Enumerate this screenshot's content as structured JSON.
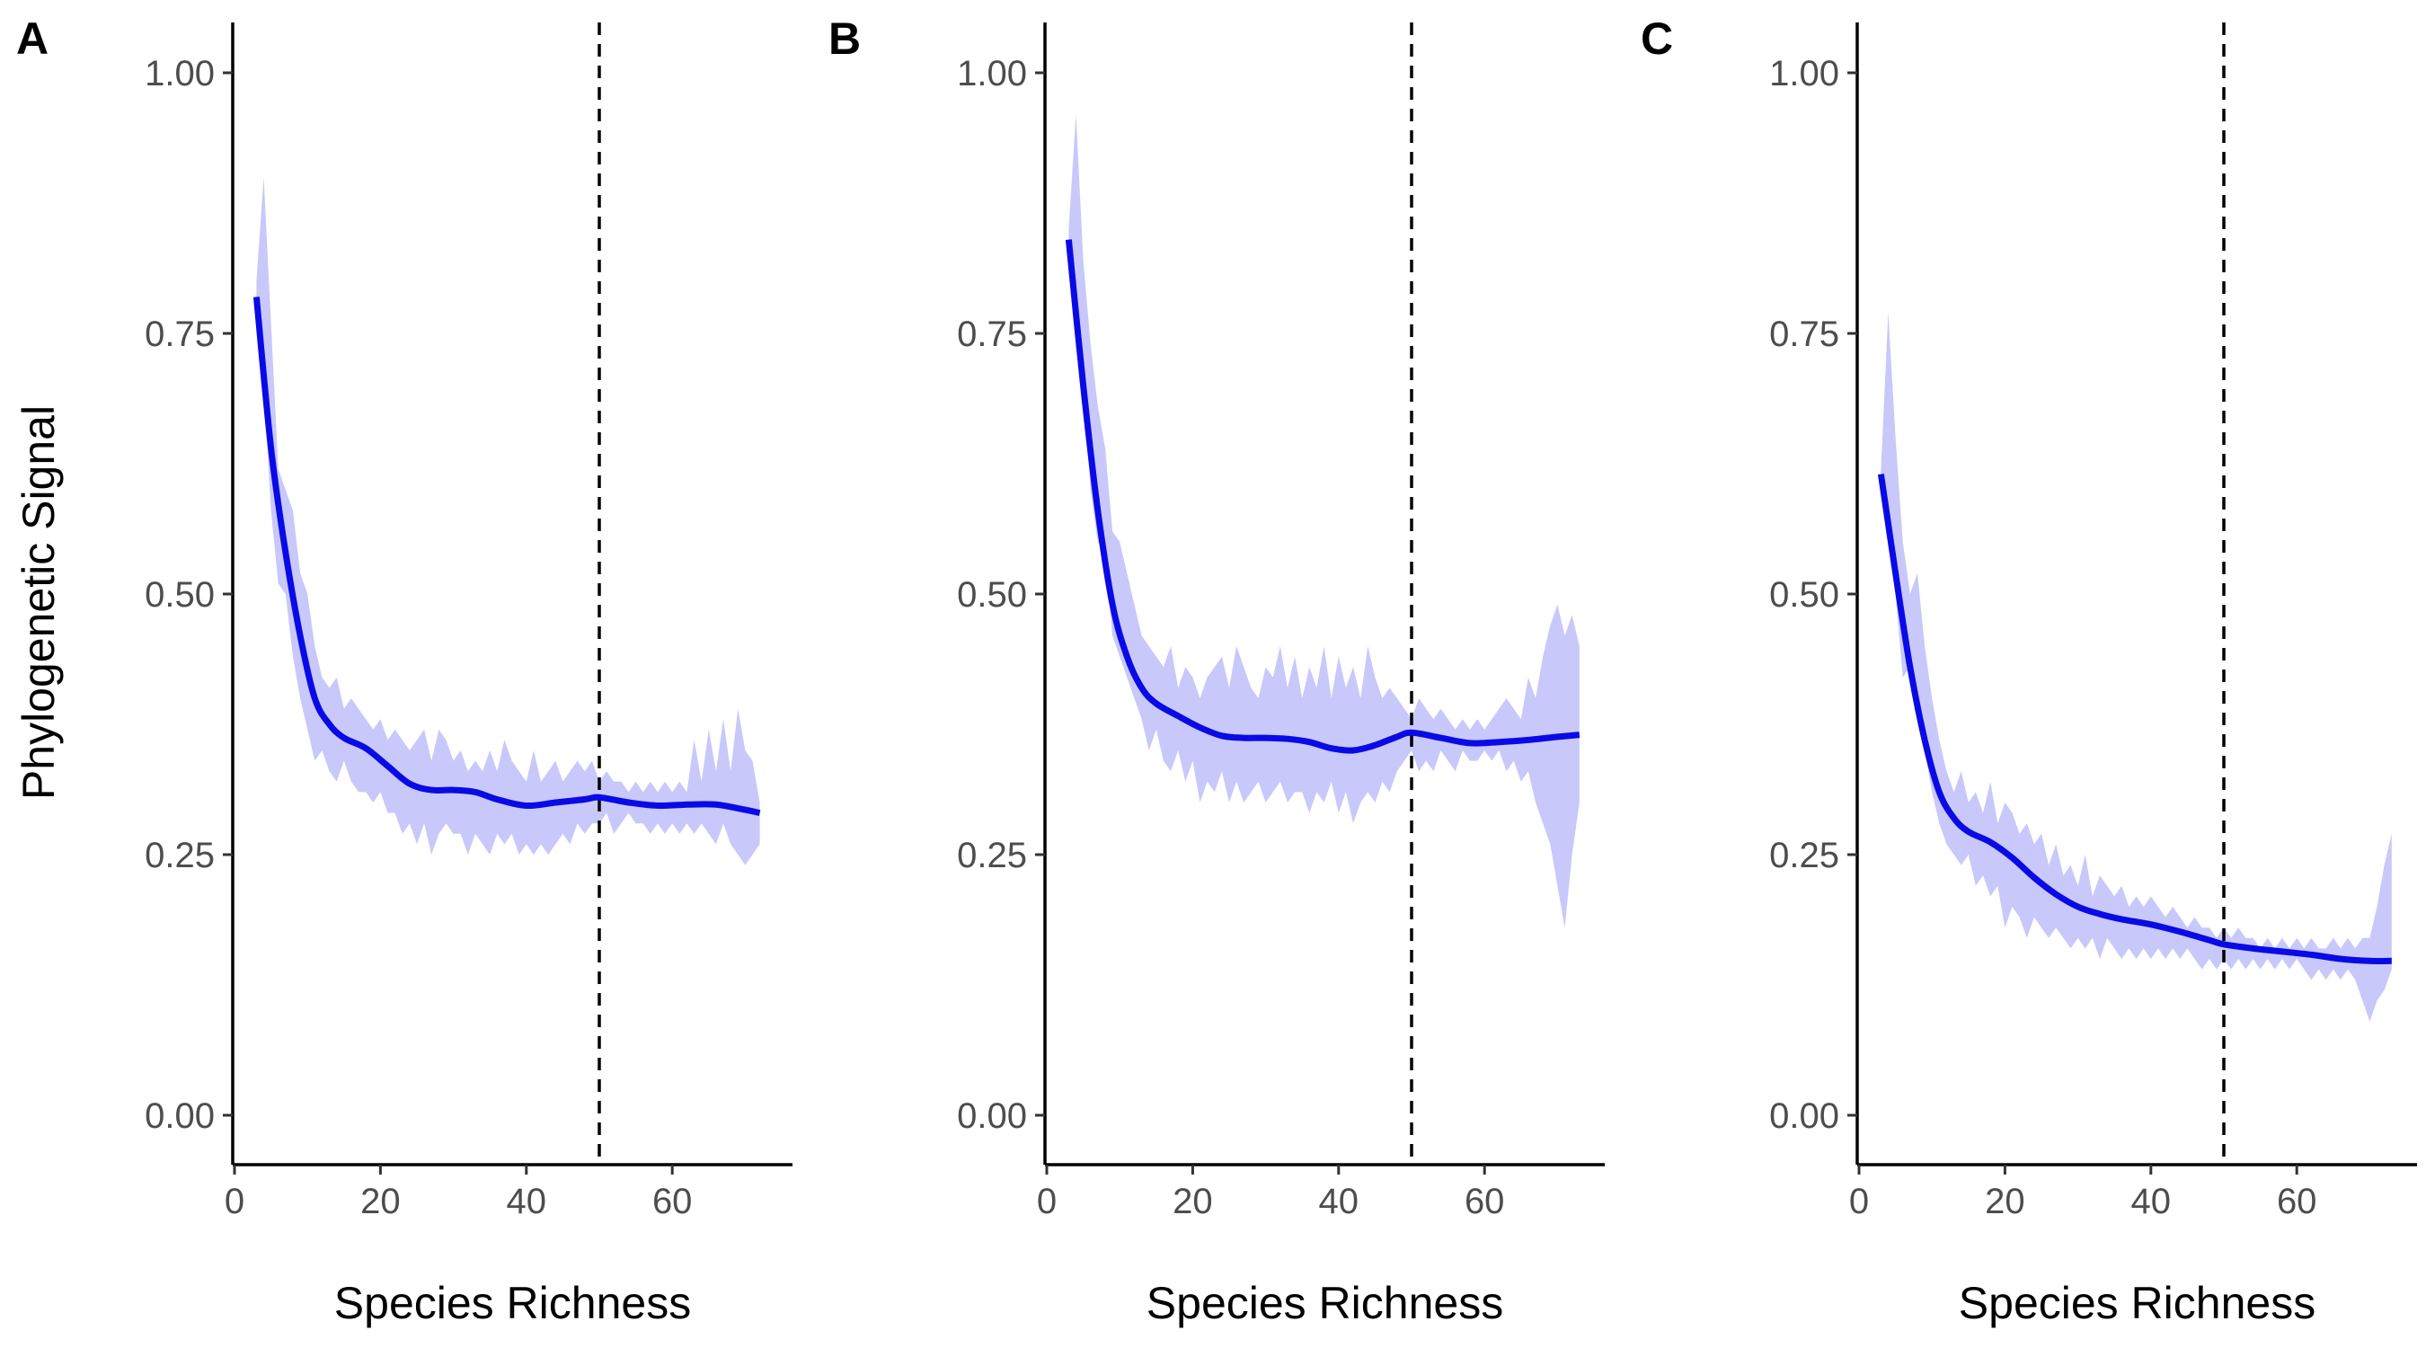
{
  "chart_data": [
    {
      "type": "line",
      "panel_label": "A",
      "xlabel": "Species Richness",
      "ylabel": "Phylogenetic Signal",
      "xlim": [
        0,
        76
      ],
      "ylim": [
        -0.05,
        1.05
      ],
      "xticks": [
        0,
        20,
        40,
        60
      ],
      "yticks": [
        0,
        0.25,
        0.5,
        0.75,
        1
      ],
      "xtick_labels": [
        "0",
        "20",
        "40",
        "60"
      ],
      "ytick_labels": [
        "0.00",
        "0.25",
        "0.50",
        "0.75",
        "1.00"
      ],
      "reference_line_x": 50,
      "grid": false,
      "band_color": "#c8c8fa",
      "line_color": "#0a0ae6",
      "series": [
        {
          "x": [
            3,
            5,
            7,
            9,
            11,
            13,
            15,
            18,
            21,
            24,
            27,
            30,
            33,
            36,
            40,
            44,
            48,
            50,
            54,
            58,
            62,
            66,
            70,
            72
          ],
          "y": [
            0.785,
            0.64,
            0.54,
            0.46,
            0.4,
            0.375,
            0.362,
            0.352,
            0.335,
            0.318,
            0.312,
            0.312,
            0.31,
            0.303,
            0.297,
            0.3,
            0.303,
            0.305,
            0.3,
            0.297,
            0.298,
            0.298,
            0.293,
            0.29
          ]
        }
      ],
      "band": {
        "x": [
          3,
          4,
          5,
          6,
          7,
          8,
          9,
          10,
          11,
          12,
          13,
          14,
          15,
          16,
          17,
          18,
          19,
          20,
          21,
          22,
          23,
          24,
          25,
          26,
          27,
          28,
          29,
          30,
          31,
          32,
          33,
          34,
          35,
          36,
          37,
          38,
          39,
          40,
          41,
          42,
          43,
          44,
          45,
          46,
          47,
          48,
          49,
          50,
          51,
          52,
          53,
          54,
          55,
          56,
          57,
          58,
          59,
          60,
          61,
          62,
          63,
          64,
          65,
          66,
          67,
          68,
          69,
          70,
          71,
          72
        ],
        "lower": [
          0.78,
          0.7,
          0.58,
          0.51,
          0.5,
          0.44,
          0.4,
          0.37,
          0.34,
          0.35,
          0.33,
          0.32,
          0.34,
          0.32,
          0.31,
          0.31,
          0.3,
          0.31,
          0.29,
          0.29,
          0.27,
          0.28,
          0.26,
          0.28,
          0.25,
          0.27,
          0.28,
          0.27,
          0.27,
          0.25,
          0.27,
          0.26,
          0.25,
          0.27,
          0.26,
          0.27,
          0.25,
          0.26,
          0.25,
          0.26,
          0.25,
          0.26,
          0.27,
          0.26,
          0.28,
          0.27,
          0.28,
          0.28,
          0.29,
          0.27,
          0.28,
          0.29,
          0.28,
          0.28,
          0.27,
          0.28,
          0.27,
          0.28,
          0.27,
          0.28,
          0.27,
          0.28,
          0.27,
          0.26,
          0.28,
          0.26,
          0.25,
          0.24,
          0.25,
          0.26
        ],
        "upper": [
          0.8,
          0.9,
          0.76,
          0.62,
          0.6,
          0.58,
          0.52,
          0.5,
          0.45,
          0.42,
          0.41,
          0.42,
          0.39,
          0.4,
          0.39,
          0.38,
          0.37,
          0.38,
          0.36,
          0.37,
          0.36,
          0.35,
          0.36,
          0.37,
          0.34,
          0.37,
          0.36,
          0.34,
          0.35,
          0.33,
          0.34,
          0.33,
          0.35,
          0.33,
          0.36,
          0.34,
          0.33,
          0.32,
          0.35,
          0.32,
          0.33,
          0.34,
          0.32,
          0.33,
          0.34,
          0.33,
          0.34,
          0.32,
          0.33,
          0.32,
          0.32,
          0.31,
          0.32,
          0.31,
          0.32,
          0.31,
          0.32,
          0.31,
          0.32,
          0.31,
          0.36,
          0.32,
          0.37,
          0.33,
          0.38,
          0.33,
          0.39,
          0.35,
          0.34,
          0.3
        ]
      }
    },
    {
      "type": "line",
      "panel_label": "B",
      "xlabel": "Species Richness",
      "ylabel": "",
      "xlim": [
        0,
        76
      ],
      "ylim": [
        -0.05,
        1.05
      ],
      "xticks": [
        0,
        20,
        40,
        60
      ],
      "yticks": [
        0,
        0.25,
        0.5,
        0.75,
        1
      ],
      "xtick_labels": [
        "0",
        "20",
        "40",
        "60"
      ],
      "ytick_labels": [
        "0.00",
        "0.25",
        "0.50",
        "0.75",
        "1.00"
      ],
      "reference_line_x": 50,
      "grid": false,
      "band_color": "#c8c8fa",
      "line_color": "#0a0ae6",
      "series": [
        {
          "x": [
            3,
            5,
            7,
            9,
            11,
            13,
            15,
            18,
            21,
            24,
            27,
            30,
            33,
            36,
            39,
            42,
            45,
            48,
            50,
            54,
            58,
            62,
            66,
            70,
            73
          ],
          "y": [
            0.84,
            0.7,
            0.58,
            0.49,
            0.44,
            0.41,
            0.395,
            0.383,
            0.372,
            0.364,
            0.362,
            0.362,
            0.361,
            0.358,
            0.352,
            0.35,
            0.355,
            0.363,
            0.367,
            0.362,
            0.357,
            0.358,
            0.36,
            0.363,
            0.365
          ]
        }
      ],
      "band": {
        "x": [
          3,
          4,
          5,
          6,
          7,
          8,
          9,
          10,
          11,
          12,
          13,
          14,
          15,
          16,
          17,
          18,
          19,
          20,
          21,
          22,
          23,
          24,
          25,
          26,
          27,
          28,
          29,
          30,
          31,
          32,
          33,
          34,
          35,
          36,
          37,
          38,
          39,
          40,
          41,
          42,
          43,
          44,
          45,
          46,
          47,
          48,
          49,
          50,
          51,
          52,
          53,
          54,
          55,
          56,
          57,
          58,
          59,
          60,
          61,
          62,
          63,
          64,
          65,
          66,
          67,
          68,
          69,
          70,
          71,
          72,
          73
        ],
        "lower": [
          0.83,
          0.78,
          0.7,
          0.6,
          0.55,
          0.54,
          0.46,
          0.44,
          0.42,
          0.4,
          0.38,
          0.35,
          0.37,
          0.34,
          0.33,
          0.35,
          0.32,
          0.34,
          0.3,
          0.32,
          0.31,
          0.33,
          0.3,
          0.32,
          0.3,
          0.31,
          0.32,
          0.3,
          0.31,
          0.32,
          0.3,
          0.31,
          0.31,
          0.29,
          0.31,
          0.3,
          0.32,
          0.29,
          0.31,
          0.28,
          0.3,
          0.31,
          0.3,
          0.32,
          0.31,
          0.33,
          0.34,
          0.35,
          0.33,
          0.34,
          0.33,
          0.35,
          0.34,
          0.33,
          0.35,
          0.34,
          0.34,
          0.35,
          0.34,
          0.35,
          0.33,
          0.34,
          0.32,
          0.33,
          0.3,
          0.28,
          0.26,
          0.22,
          0.18,
          0.25,
          0.3
        ],
        "upper": [
          0.85,
          0.96,
          0.82,
          0.74,
          0.68,
          0.64,
          0.56,
          0.55,
          0.52,
          0.49,
          0.46,
          0.45,
          0.44,
          0.43,
          0.45,
          0.41,
          0.43,
          0.42,
          0.4,
          0.42,
          0.43,
          0.44,
          0.41,
          0.45,
          0.43,
          0.41,
          0.4,
          0.43,
          0.42,
          0.45,
          0.41,
          0.44,
          0.4,
          0.43,
          0.41,
          0.45,
          0.4,
          0.44,
          0.41,
          0.43,
          0.4,
          0.45,
          0.42,
          0.4,
          0.41,
          0.4,
          0.39,
          0.38,
          0.4,
          0.39,
          0.38,
          0.39,
          0.38,
          0.37,
          0.38,
          0.37,
          0.38,
          0.37,
          0.38,
          0.39,
          0.4,
          0.39,
          0.38,
          0.42,
          0.4,
          0.44,
          0.47,
          0.49,
          0.46,
          0.48,
          0.45
        ]
      }
    },
    {
      "type": "line",
      "panel_label": "C",
      "xlabel": "Species Richness",
      "ylabel": "",
      "xlim": [
        0,
        76
      ],
      "ylim": [
        -0.05,
        1.05
      ],
      "xticks": [
        0,
        20,
        40,
        60
      ],
      "yticks": [
        0,
        0.25,
        0.5,
        0.75,
        1
      ],
      "xtick_labels": [
        "0",
        "20",
        "40",
        "60"
      ],
      "ytick_labels": [
        "0.00",
        "0.25",
        "0.50",
        "0.75",
        "1.00"
      ],
      "reference_line_x": 50,
      "grid": false,
      "band_color": "#c8c8fa",
      "line_color": "#0a0ae6",
      "series": [
        {
          "x": [
            3,
            5,
            7,
            9,
            11,
            13,
            15,
            18,
            21,
            24,
            27,
            30,
            33,
            36,
            40,
            44,
            48,
            50,
            54,
            58,
            62,
            66,
            70,
            73
          ],
          "y": [
            0.615,
            0.52,
            0.43,
            0.36,
            0.31,
            0.285,
            0.272,
            0.262,
            0.247,
            0.228,
            0.212,
            0.2,
            0.193,
            0.188,
            0.183,
            0.176,
            0.168,
            0.164,
            0.16,
            0.157,
            0.154,
            0.15,
            0.148,
            0.148
          ]
        }
      ],
      "band": {
        "x": [
          3,
          4,
          5,
          6,
          7,
          8,
          9,
          10,
          11,
          12,
          13,
          14,
          15,
          16,
          17,
          18,
          19,
          20,
          21,
          22,
          23,
          24,
          25,
          26,
          27,
          28,
          29,
          30,
          31,
          32,
          33,
          34,
          35,
          36,
          37,
          38,
          39,
          40,
          41,
          42,
          43,
          44,
          45,
          46,
          47,
          48,
          49,
          50,
          51,
          52,
          53,
          54,
          55,
          56,
          57,
          58,
          59,
          60,
          61,
          62,
          63,
          64,
          65,
          66,
          67,
          68,
          69,
          70,
          71,
          72,
          73
        ],
        "lower": [
          0.61,
          0.55,
          0.5,
          0.42,
          0.43,
          0.4,
          0.35,
          0.31,
          0.28,
          0.26,
          0.25,
          0.24,
          0.25,
          0.22,
          0.23,
          0.21,
          0.22,
          0.18,
          0.2,
          0.19,
          0.17,
          0.19,
          0.18,
          0.17,
          0.18,
          0.17,
          0.16,
          0.17,
          0.16,
          0.17,
          0.15,
          0.17,
          0.16,
          0.15,
          0.16,
          0.15,
          0.16,
          0.15,
          0.16,
          0.15,
          0.16,
          0.15,
          0.16,
          0.15,
          0.14,
          0.15,
          0.14,
          0.15,
          0.14,
          0.15,
          0.14,
          0.15,
          0.14,
          0.15,
          0.14,
          0.15,
          0.14,
          0.15,
          0.14,
          0.13,
          0.14,
          0.13,
          0.14,
          0.13,
          0.14,
          0.13,
          0.11,
          0.09,
          0.11,
          0.12,
          0.14
        ],
        "upper": [
          0.62,
          0.77,
          0.65,
          0.55,
          0.5,
          0.52,
          0.45,
          0.4,
          0.36,
          0.33,
          0.31,
          0.33,
          0.3,
          0.31,
          0.29,
          0.32,
          0.28,
          0.3,
          0.29,
          0.27,
          0.28,
          0.26,
          0.27,
          0.24,
          0.26,
          0.23,
          0.24,
          0.22,
          0.25,
          0.21,
          0.23,
          0.22,
          0.21,
          0.22,
          0.2,
          0.21,
          0.2,
          0.21,
          0.2,
          0.19,
          0.2,
          0.19,
          0.18,
          0.19,
          0.18,
          0.18,
          0.17,
          0.18,
          0.17,
          0.18,
          0.17,
          0.17,
          0.16,
          0.17,
          0.16,
          0.17,
          0.16,
          0.17,
          0.16,
          0.17,
          0.16,
          0.16,
          0.17,
          0.16,
          0.17,
          0.16,
          0.17,
          0.17,
          0.2,
          0.24,
          0.27
        ]
      }
    }
  ]
}
